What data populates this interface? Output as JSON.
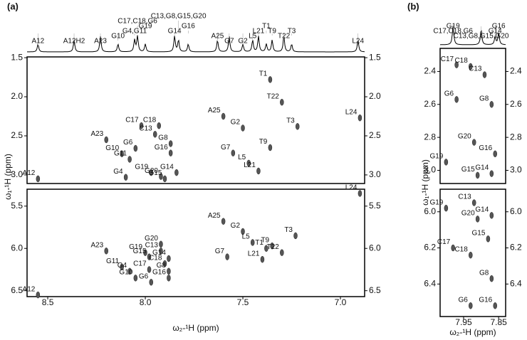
{
  "chart_data": [
    {
      "type": "nmr",
      "panel": "(a)",
      "xlabel": "ω₂-¹H  (ppm)",
      "ylabel": "ω₁-¹H  (ppm)",
      "xlim": [
        8.606,
        6.876
      ],
      "xticks": [
        8.5,
        {
          "value": 8,
          "label": "8.0"
        },
        7.5,
        {
          "value": 7,
          "label": "7.0"
        }
      ],
      "spectrum_labels": [
        {
          "text": "A12",
          "x": 8.55
        },
        {
          "text": "A12H2",
          "x": 8.365
        },
        {
          "text": "A23",
          "x": 8.23
        },
        {
          "text": "G10",
          "x": 8.14
        },
        {
          "text": "G4,G11",
          "x": 8.055
        },
        {
          "text": "C17,C18,G6",
          "x": 8.04
        },
        {
          "text": "G19",
          "x": 8.0
        },
        {
          "text": "C13,G8,G15,G20",
          "x": 7.83
        },
        {
          "text": "G14",
          "x": 7.85
        },
        {
          "text": "G16",
          "x": 7.78
        },
        {
          "text": "A25",
          "x": 7.63
        },
        {
          "text": "G7",
          "x": 7.57
        },
        {
          "text": "G2",
          "x": 7.5
        },
        {
          "text": "L5",
          "x": 7.45
        },
        {
          "text": "L21",
          "x": 7.42
        },
        {
          "text": "T1",
          "x": 7.38
        },
        {
          "text": "T9",
          "x": 7.35
        },
        {
          "text": "T22",
          "x": 7.29
        },
        {
          "text": "T3",
          "x": 7.25
        },
        {
          "text": "L24",
          "x": 6.91
        }
      ],
      "plots": [
        {
          "ylim": [
            1.49,
            3.11
          ],
          "yticks": [
            1.5,
            {
              "value": 2,
              "label": "2.0"
            },
            2.5,
            {
              "value": 3,
              "label": "3.0"
            }
          ],
          "peaks": [
            {
              "text": "T1",
              "x": 7.36,
              "y": 1.78
            },
            {
              "text": "T22",
              "x": 7.3,
              "y": 2.07
            },
            {
              "text": "T3",
              "x": 7.22,
              "y": 2.38
            },
            {
              "text": "L24",
              "x": 6.9,
              "y": 2.27
            },
            {
              "text": "A25",
              "x": 7.6,
              "y": 2.25
            },
            {
              "text": "G2",
              "x": 7.5,
              "y": 2.4
            },
            {
              "text": "T9",
              "x": 7.36,
              "y": 2.65
            },
            {
              "text": "G7",
              "x": 7.55,
              "y": 2.72
            },
            {
              "text": "L5",
              "x": 7.47,
              "y": 2.85
            },
            {
              "text": "L21",
              "x": 7.42,
              "y": 2.95
            },
            {
              "text": "A23",
              "x": 8.2,
              "y": 2.55
            },
            {
              "text": "C17",
              "x": 8.02,
              "y": 2.37
            },
            {
              "text": "C18",
              "x": 7.93,
              "y": 2.37
            },
            {
              "text": "C13",
              "x": 7.95,
              "y": 2.48
            },
            {
              "text": "G8",
              "x": 7.87,
              "y": 2.6
            },
            {
              "text": "G6",
              "x": 8.05,
              "y": 2.66
            },
            {
              "text": "G16",
              "x": 7.87,
              "y": 2.72
            },
            {
              "text": "G10",
              "x": 8.12,
              "y": 2.73
            },
            {
              "text": "G11",
              "x": 8.08,
              "y": 2.8
            },
            {
              "text": "A12",
              "x": 8.55,
              "y": 3.05
            },
            {
              "text": "G4",
              "x": 8.1,
              "y": 3.03
            },
            {
              "text": "G19",
              "x": 7.97,
              "y": 2.97
            },
            {
              "text": "G20",
              "x": 7.92,
              "y": 3.02
            },
            {
              "text": "G14",
              "x": 7.84,
              "y": 2.97
            },
            {
              "text": "G15",
              "x": 7.9,
              "y": 3.05
            }
          ]
        },
        {
          "ylim": [
            5.3,
            6.57
          ],
          "yticks": [
            5.5,
            {
              "value": 6,
              "label": "6.0"
            },
            6.5
          ],
          "peaks": [
            {
              "text": "L24",
              "x": 6.9,
              "y": 5.35
            },
            {
              "text": "A25",
              "x": 7.6,
              "y": 5.68
            },
            {
              "text": "G2",
              "x": 7.5,
              "y": 5.8
            },
            {
              "text": "T3",
              "x": 7.23,
              "y": 5.85
            },
            {
              "text": "L5",
              "x": 7.45,
              "y": 5.93
            },
            {
              "text": "T9",
              "x": 7.35,
              "y": 5.97
            },
            {
              "text": "T1",
              "x": 7.38,
              "y": 6.0
            },
            {
              "text": "T22",
              "x": 7.3,
              "y": 6.05
            },
            {
              "text": "L21",
              "x": 7.4,
              "y": 6.13
            },
            {
              "text": "G7",
              "x": 7.58,
              "y": 6.1
            },
            {
              "text": "A23",
              "x": 8.2,
              "y": 6.03
            },
            {
              "text": "G20",
              "x": 7.92,
              "y": 5.95
            },
            {
              "text": "G19",
              "x": 8.0,
              "y": 6.05
            },
            {
              "text": "C13",
              "x": 7.92,
              "y": 6.03
            },
            {
              "text": "G15",
              "x": 7.98,
              "y": 6.1
            },
            {
              "text": "G14",
              "x": 7.88,
              "y": 6.12
            },
            {
              "text": "C18",
              "x": 7.9,
              "y": 6.18
            },
            {
              "text": "C17",
              "x": 7.98,
              "y": 6.25
            },
            {
              "text": "G8",
              "x": 7.88,
              "y": 6.27
            },
            {
              "text": "G11",
              "x": 8.12,
              "y": 6.22
            },
            {
              "text": "G4",
              "x": 8.08,
              "y": 6.27
            },
            {
              "text": "G10",
              "x": 8.05,
              "y": 6.35
            },
            {
              "text": "G16",
              "x": 7.88,
              "y": 6.35
            },
            {
              "text": "G6",
              "x": 7.97,
              "y": 6.4
            },
            {
              "text": "A12",
              "x": 8.55,
              "y": 6.55
            }
          ]
        }
      ]
    },
    {
      "type": "nmr",
      "panel": "(b)",
      "xlabel": "ω₂-¹H  (ppm)",
      "ylabel": "ω₁-¹H  (ppm)",
      "xlim": [
        8.017,
        7.83
      ],
      "xticks": [
        7.95,
        7.85
      ],
      "spectrum_labels": [
        {
          "text": "G19",
          "x": 7.98
        },
        {
          "text": "C17,C18,G6",
          "x": 7.98
        },
        {
          "text": "C13,G8,G15,G20",
          "x": 7.9
        },
        {
          "text": "G14",
          "x": 7.86
        },
        {
          "text": "G16",
          "x": 7.85
        }
      ],
      "plots": [
        {
          "ylim": [
            2.26,
            3.08
          ],
          "yticks": [
            2.4,
            2.6,
            2.8,
            {
              "value": 3,
              "label": "3.0"
            }
          ],
          "peaks": [
            {
              "text": "C17",
              "x": 7.97,
              "y": 2.36
            },
            {
              "text": "C18",
              "x": 7.93,
              "y": 2.37
            },
            {
              "text": "C13",
              "x": 7.89,
              "y": 2.42
            },
            {
              "text": "G6",
              "x": 7.97,
              "y": 2.57
            },
            {
              "text": "G8",
              "x": 7.87,
              "y": 2.6
            },
            {
              "text": "G20",
              "x": 7.92,
              "y": 2.83
            },
            {
              "text": "G16",
              "x": 7.86,
              "y": 2.9
            },
            {
              "text": "G19",
              "x": 8.0,
              "y": 2.95
            },
            {
              "text": "G15",
              "x": 7.91,
              "y": 3.03
            },
            {
              "text": "G14",
              "x": 7.87,
              "y": 3.02
            }
          ]
        },
        {
          "ylim": [
            5.875,
            6.58
          ],
          "yticks": [
            {
              "value": 6,
              "label": "6.0"
            },
            6.2,
            6.4
          ],
          "peaks": [
            {
              "text": "C13",
              "x": 7.92,
              "y": 5.95
            },
            {
              "text": "G20",
              "x": 7.91,
              "y": 6.04
            },
            {
              "text": "G19",
              "x": 8.0,
              "y": 5.98
            },
            {
              "text": "G14",
              "x": 7.87,
              "y": 6.02
            },
            {
              "text": "G15",
              "x": 7.88,
              "y": 6.15
            },
            {
              "text": "C17",
              "x": 7.98,
              "y": 6.2
            },
            {
              "text": "C18",
              "x": 7.93,
              "y": 6.24
            },
            {
              "text": "G8",
              "x": 7.87,
              "y": 6.37
            },
            {
              "text": "G6",
              "x": 7.93,
              "y": 6.52
            },
            {
              "text": "G16",
              "x": 7.86,
              "y": 6.52
            }
          ]
        }
      ]
    }
  ]
}
